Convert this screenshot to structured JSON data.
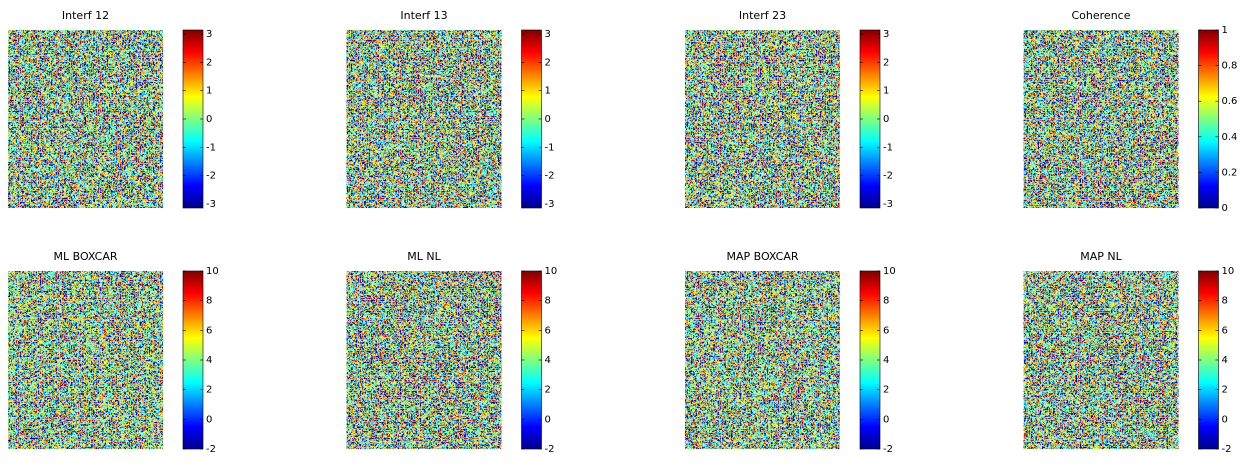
{
  "chart_data": [
    {
      "type": "image",
      "title": "Interf 12",
      "clim": [
        -3.1416,
        3.1416
      ],
      "cticks": [
        -3,
        -2,
        -1,
        0,
        1,
        2,
        3
      ]
    },
    {
      "type": "image",
      "title": "Interf 13",
      "clim": [
        -3.1416,
        3.1416
      ],
      "cticks": [
        -3,
        -2,
        -1,
        0,
        1,
        2,
        3
      ]
    },
    {
      "type": "image",
      "title": "Interf 23",
      "clim": [
        -3.1416,
        3.1416
      ],
      "cticks": [
        -3,
        -2,
        -1,
        0,
        1,
        2,
        3
      ]
    },
    {
      "type": "image",
      "title": "Coherence",
      "clim": [
        0,
        1
      ],
      "cticks": [
        0,
        0.2,
        0.4,
        0.6,
        0.8,
        1
      ]
    },
    {
      "type": "image",
      "title": "ML BOXCAR",
      "clim": [
        -2,
        10
      ],
      "cticks": [
        -2,
        0,
        2,
        4,
        6,
        8,
        10
      ]
    },
    {
      "type": "image",
      "title": "ML NL",
      "clim": [
        -2,
        10
      ],
      "cticks": [
        -2,
        0,
        2,
        4,
        6,
        8,
        10
      ]
    },
    {
      "type": "image",
      "title": "MAP BOXCAR",
      "clim": [
        -2,
        10
      ],
      "cticks": [
        -2,
        0,
        2,
        4,
        6,
        8,
        10
      ]
    },
    {
      "type": "image",
      "title": "MAP NL",
      "clim": [
        -2,
        10
      ],
      "cticks": [
        -2,
        0,
        2,
        4,
        6,
        8,
        10
      ]
    }
  ]
}
